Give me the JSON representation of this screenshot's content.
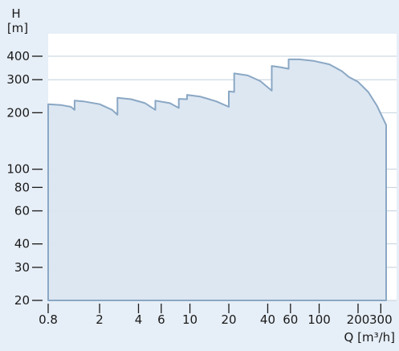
{
  "chart_data": {
    "type": "area",
    "ylabel_symbol": "H",
    "ylabel_unit": "[m]",
    "xlabel": "Q [m³/h]",
    "x_scale": "log",
    "y_scale": "log",
    "xlim": [
      0.8,
      350
    ],
    "ylim": [
      20,
      490
    ],
    "grid": true,
    "x_ticks": [
      {
        "value": 0.8,
        "label": "0.8"
      },
      {
        "value": 2,
        "label": "2"
      },
      {
        "value": 4,
        "label": "4"
      },
      {
        "value": 6,
        "label": "6"
      },
      {
        "value": 10,
        "label": "10"
      },
      {
        "value": 20,
        "label": "20"
      },
      {
        "value": 40,
        "label": "40"
      },
      {
        "value": 60,
        "label": "60"
      },
      {
        "value": 100,
        "label": "100"
      },
      {
        "value": 200,
        "label": "200"
      },
      {
        "value": 300,
        "label": "300"
      }
    ],
    "y_ticks": [
      {
        "value": 20,
        "label": "20"
      },
      {
        "value": 30,
        "label": "30"
      },
      {
        "value": 40,
        "label": "40"
      },
      {
        "value": 60,
        "label": "60"
      },
      {
        "value": 80,
        "label": "80"
      },
      {
        "value": 100,
        "label": "100"
      },
      {
        "value": 200,
        "label": "200"
      },
      {
        "value": 300,
        "label": "300"
      },
      {
        "value": 400,
        "label": "400"
      }
    ],
    "series": [
      {
        "points": [
          [
            0.8,
            222
          ],
          [
            1.0,
            220
          ],
          [
            1.2,
            215
          ],
          [
            1.28,
            207
          ],
          [
            1.28,
            232
          ],
          [
            1.5,
            230
          ],
          [
            2.0,
            222
          ],
          [
            2.5,
            207
          ],
          [
            2.75,
            195
          ],
          [
            2.75,
            240
          ],
          [
            3.5,
            236
          ],
          [
            4.5,
            225
          ],
          [
            5.4,
            207
          ],
          [
            5.4,
            232
          ],
          [
            7.0,
            225
          ],
          [
            8.2,
            212
          ],
          [
            8.2,
            237
          ],
          [
            9.5,
            236
          ],
          [
            9.5,
            249
          ],
          [
            12,
            244
          ],
          [
            16,
            230
          ],
          [
            20,
            215
          ],
          [
            20,
            260
          ],
          [
            22,
            258
          ],
          [
            22,
            324
          ],
          [
            28,
            316
          ],
          [
            35,
            295
          ],
          [
            43,
            262
          ],
          [
            43,
            355
          ],
          [
            50,
            350
          ],
          [
            58,
            343
          ],
          [
            58,
            385
          ],
          [
            70,
            385
          ],
          [
            90,
            378
          ],
          [
            120,
            362
          ],
          [
            150,
            333
          ],
          [
            170,
            310
          ],
          [
            200,
            292
          ],
          [
            240,
            258
          ],
          [
            280,
            218
          ],
          [
            320,
            180
          ],
          [
            330,
            172
          ],
          [
            330,
            20
          ]
        ]
      }
    ],
    "colors": {
      "area_fill": "#dbe6f1",
      "line": "#8aa7c4",
      "grid": "#c3d1de",
      "background": "#e6eef7",
      "text": "#1a1a1a"
    }
  }
}
